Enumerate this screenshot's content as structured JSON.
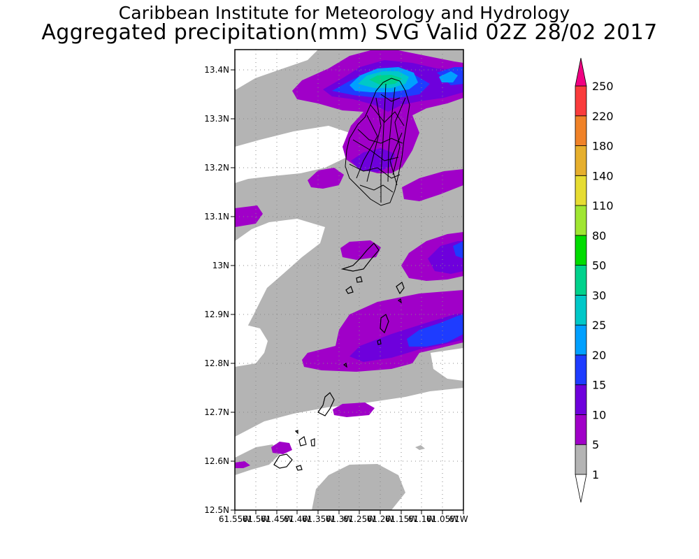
{
  "header": {
    "title": "Caribbean Institute for Meteorology and Hydrology",
    "subtitle": "Aggregated precipitation(mm) SVG Valid 02Z 28/02 2017"
  },
  "map": {
    "lat_ticks": [
      "13.4N",
      "13.3N",
      "13.2N",
      "13.1N",
      "13N",
      "12.9N",
      "12.8N",
      "12.7N",
      "12.6N",
      "12.5N"
    ],
    "lon_ticks": [
      "61.55W",
      "61.5W",
      "61.45W",
      "61.4W",
      "61.35W",
      "61.3W",
      "61.25W",
      "61.2W",
      "61.15W",
      "61.1W",
      "61.05W",
      "61W"
    ],
    "lat_range": [
      12.5,
      13.44
    ],
    "lon_range": [
      -61.55,
      -61.0
    ]
  },
  "colorbar": {
    "levels": [
      "1",
      "5",
      "10",
      "15",
      "20",
      "25",
      "30",
      "50",
      "80",
      "110",
      "140",
      "180",
      "220",
      "250"
    ],
    "colors": [
      "#b4b4b4",
      "#a000c8",
      "#6e00dc",
      "#1e3cff",
      "#00a0ff",
      "#00c8c8",
      "#00d28c",
      "#00dc00",
      "#a0e632",
      "#e6dc32",
      "#e6af2d",
      "#f08228",
      "#fa3c3c",
      "#f00082"
    ]
  }
}
